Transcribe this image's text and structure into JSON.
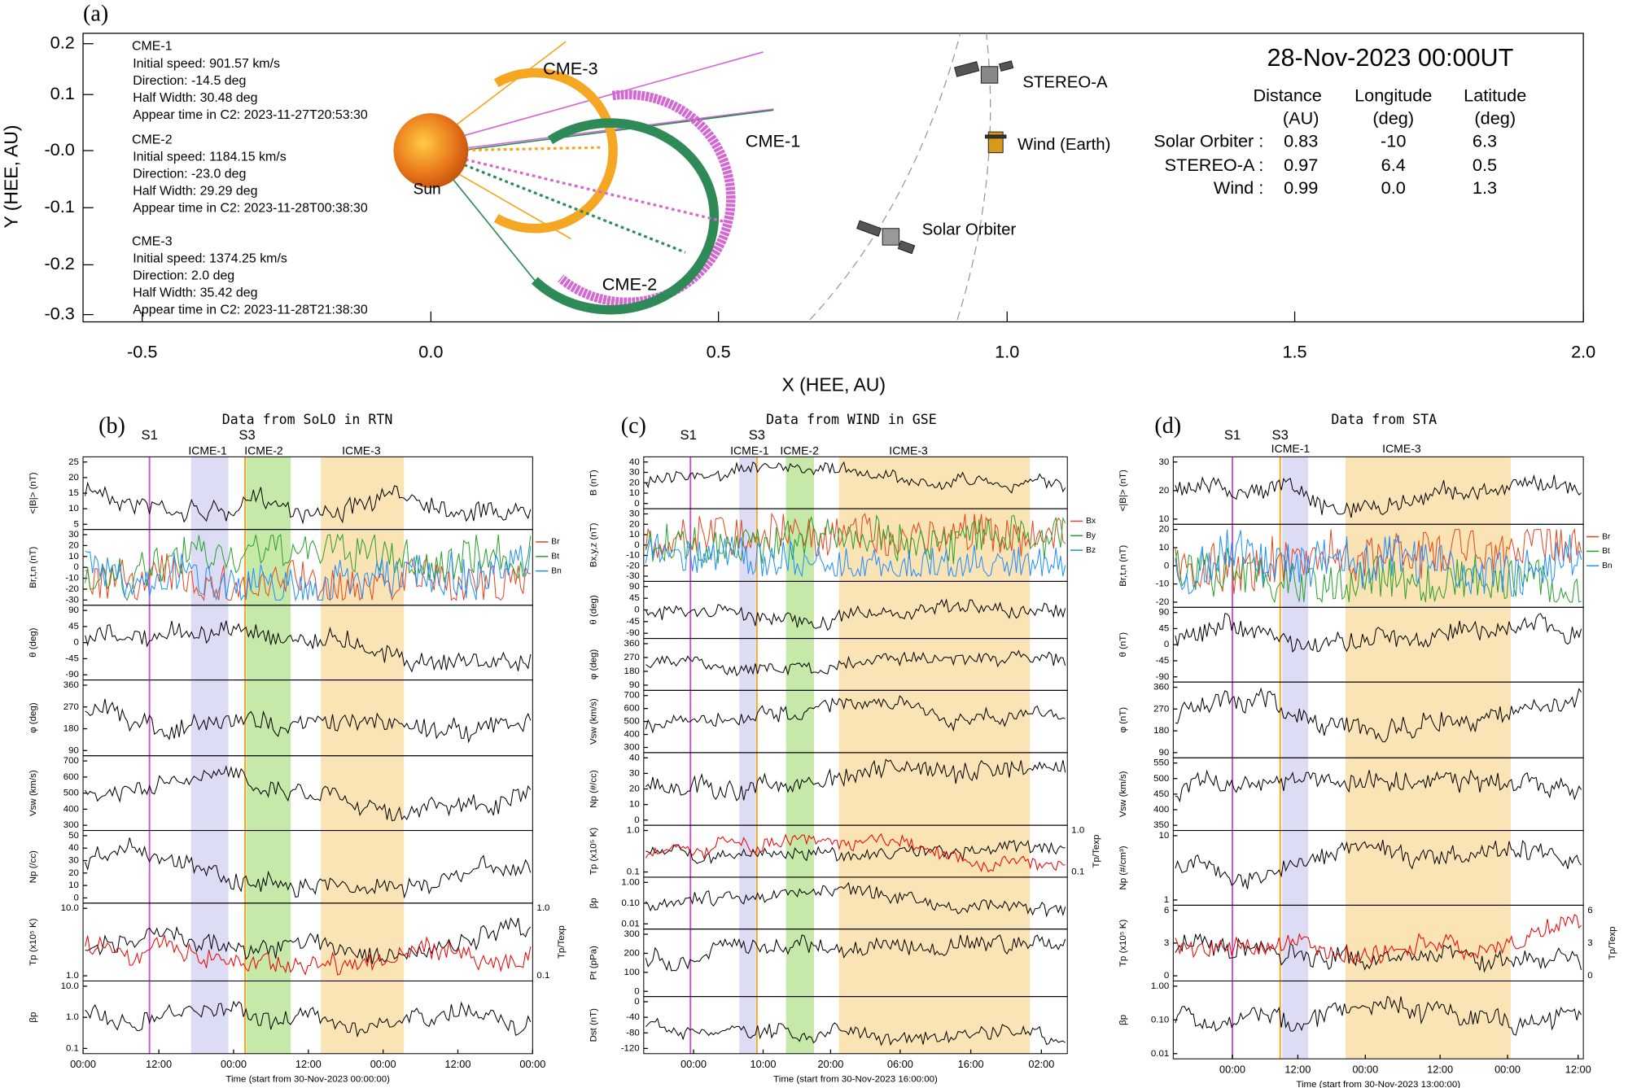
{
  "panel_a": {
    "label": "(a)",
    "x_axis_title": "X (HEE, AU)",
    "y_axis_title": "Y (HEE, AU)",
    "xticks": [
      "-0.5",
      "0.0",
      "0.5",
      "1.0",
      "1.5",
      "2.0"
    ],
    "yticks": [
      "0.2",
      "0.1",
      "-0.0",
      "-0.1",
      "-0.2",
      "-0.3"
    ],
    "cmes": [
      {
        "name": "CME-1",
        "lines": [
          "Initial speed: 901.57 km/s",
          "Direction: -14.5 deg",
          "Half Width: 30.48 deg",
          "Appear time in C2: 2023-11-27T20:53:30"
        ]
      },
      {
        "name": "CME-2",
        "lines": [
          "Initial speed: 1184.15 km/s",
          "Direction: -23.0 deg",
          "Half Width: 29.29 deg",
          "Appear time in C2: 2023-11-28T00:38:30"
        ]
      },
      {
        "name": "CME-3",
        "lines": [
          "Initial speed: 1374.25 km/s",
          "Direction: 2.0 deg",
          "Half Width: 35.42 deg",
          "Appear time in C2: 2023-11-28T21:38:30"
        ]
      }
    ],
    "sun": "Sun",
    "cme_labels": [
      "CME-1",
      "CME-2",
      "CME-3"
    ],
    "spacecraft": [
      "STEREO-A",
      "Wind (Earth)",
      "Solar Orbiter"
    ],
    "time": "28-Nov-2023 00:00UT",
    "table": {
      "columns": [
        [
          "Distance",
          "(AU)"
        ],
        [
          "Longitude",
          "(deg)"
        ],
        [
          "Latitude",
          "(deg)"
        ]
      ],
      "rows": [
        {
          "name": "Solar Orbiter :",
          "values": [
            "0.83",
            "-10",
            "6.3"
          ]
        },
        {
          "name": "STEREO-A :",
          "values": [
            "0.97",
            "6.4",
            "0.5"
          ]
        },
        {
          "name": "Wind :",
          "values": [
            "0.99",
            "0.0",
            "1.3"
          ]
        }
      ]
    }
  },
  "panels": [
    {
      "label": "(b)",
      "title": "Data from SoLO in RTN",
      "events": [
        "S1",
        "S3",
        "ICME-1",
        "ICME-2",
        "ICME-3"
      ],
      "xticks": [
        "00:00",
        "12:00",
        "00:00",
        "12:00",
        "00:00",
        "12:00",
        "00:00"
      ],
      "x_axis_title": "Time (start from 30-Nov-2023 00:00:00)",
      "rows": [
        {
          "label": "<|B|> (nT)",
          "ticks": [
            "5",
            "10",
            "15",
            "20",
            "25"
          ]
        },
        {
          "label": "Br,t,n (nT)",
          "ticks": [
            "-30",
            "-20",
            "-10",
            "0",
            "10",
            "20",
            "30"
          ],
          "legend": [
            "Br",
            "Bt",
            "Bn"
          ]
        },
        {
          "label": "θ (deg)",
          "ticks": [
            "-90",
            "-45",
            "0",
            "45",
            "90"
          ]
        },
        {
          "label": "φ (deg)",
          "ticks": [
            "90",
            "180",
            "270",
            "360"
          ]
        },
        {
          "label": "Vsw (km/s)",
          "ticks": [
            "300",
            "400",
            "500",
            "600",
            "700"
          ]
        },
        {
          "label": "Np (/cc)",
          "ticks": [
            "0",
            "10",
            "20",
            "30",
            "40",
            "50"
          ]
        },
        {
          "label": "Tp (x10⁵ K)",
          "ticks": [
            "1.0",
            "10.0"
          ],
          "right_label": "Tp/Texp",
          "right_ticks": [
            "0.1",
            "1.0"
          ]
        },
        {
          "label": "βp",
          "ticks": [
            "0.1",
            "1.0",
            "10.0"
          ]
        }
      ]
    },
    {
      "label": "(c)",
      "title": "Data from WIND in GSE",
      "events": [
        "S1",
        "S3",
        "ICME-1",
        "ICME-2",
        "ICME-3"
      ],
      "xticks": [
        "00:00",
        "10:00",
        "20:00",
        "06:00",
        "16:00",
        "02:00"
      ],
      "x_axis_title": "Time (start from 30-Nov-2023 16:00:00)",
      "rows": [
        {
          "label": "B (nT)",
          "ticks": [
            "0",
            "10",
            "20",
            "30",
            "40"
          ]
        },
        {
          "label": "Bx,y,z (nT)",
          "ticks": [
            "-30",
            "-20",
            "-10",
            "0",
            "10",
            "20",
            "30"
          ],
          "legend": [
            "Bx",
            "By",
            "Bz"
          ]
        },
        {
          "label": "θ (deg)",
          "ticks": [
            "-90",
            "-45",
            "0",
            "45",
            "90"
          ]
        },
        {
          "label": "φ (deg)",
          "ticks": [
            "90",
            "180",
            "270",
            "360"
          ]
        },
        {
          "label": "Vsw (km/s)",
          "ticks": [
            "300",
            "400",
            "500",
            "600",
            "700"
          ]
        },
        {
          "label": "Np (#/cc)",
          "ticks": [
            "0",
            "10",
            "20",
            "30",
            "40"
          ]
        },
        {
          "label": "Tp (x10⁵ K)",
          "ticks": [
            "0.1",
            "1.0"
          ],
          "right_label": "Tp/Texp",
          "right_ticks": [
            "0.1",
            "1.0"
          ]
        },
        {
          "label": "βp",
          "ticks": [
            "0.01",
            "0.10",
            "1.00"
          ]
        },
        {
          "label": "Pt (pPa)",
          "ticks": [
            "0",
            "100",
            "200",
            "300"
          ]
        },
        {
          "label": "Dst (nT)",
          "ticks": [
            "-120",
            "-80",
            "-40",
            "0"
          ]
        }
      ]
    },
    {
      "label": "(d)",
      "title": "Data from STA",
      "events": [
        "S1",
        "S3",
        "ICME-1",
        "ICME-3"
      ],
      "xticks": [
        "00:00",
        "12:00",
        "00:00",
        "12:00",
        "00:00",
        "12:00"
      ],
      "x_axis_title": "Time (start from 30-Nov-2023 13:00:00)",
      "rows": [
        {
          "label": "<|B|> (nT)",
          "ticks": [
            "10",
            "20",
            "30"
          ]
        },
        {
          "label": "Br,t,n (nT)",
          "ticks": [
            "-20",
            "-10",
            "0",
            "10",
            "20"
          ],
          "legend": [
            "Br",
            "Bt",
            "Bn"
          ]
        },
        {
          "label": "θ (nT)",
          "ticks": [
            "-90",
            "-45",
            "0",
            "45",
            "90"
          ]
        },
        {
          "label": "φ (nT)",
          "ticks": [
            "90",
            "180",
            "270",
            "360"
          ]
        },
        {
          "label": "Vsw (km/s)",
          "ticks": [
            "350",
            "400",
            "450",
            "500",
            "550"
          ]
        },
        {
          "label": "Np (#/cm³)",
          "ticks": [
            "1",
            "10"
          ]
        },
        {
          "label": "Tp (x10⁵ K)",
          "ticks": [
            "0",
            "3",
            "6"
          ],
          "right_label": "Tp/Texp",
          "right_ticks": [
            "0",
            "3",
            "6"
          ]
        },
        {
          "label": "βp",
          "ticks": [
            "0.01",
            "0.10",
            "1.00"
          ]
        }
      ]
    }
  ]
}
